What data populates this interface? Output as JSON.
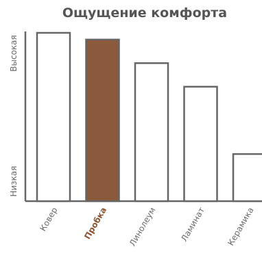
{
  "chart_data": {
    "type": "bar",
    "title": "Ощущение комфорта",
    "xlabel": "",
    "ylabel": "",
    "categories": [
      "Ковер",
      "Пробка",
      "Линолеум",
      "Ламинат",
      "Керамика"
    ],
    "values": [
      100,
      96,
      82,
      68,
      28
    ],
    "ylim": [
      0,
      100
    ],
    "y_scale_labels": {
      "high": "Высокая",
      "low": "Низкая"
    },
    "highlight_index": 1,
    "grid": false,
    "legend": "none",
    "colors": {
      "bar_fill": "#ffffff",
      "bar_stroke": "#666666",
      "highlight_fill": "#8b5a3c",
      "highlight_text": "#8a5533",
      "axis": "#666666",
      "title": "#555555",
      "label": "#6a6a6a"
    }
  }
}
